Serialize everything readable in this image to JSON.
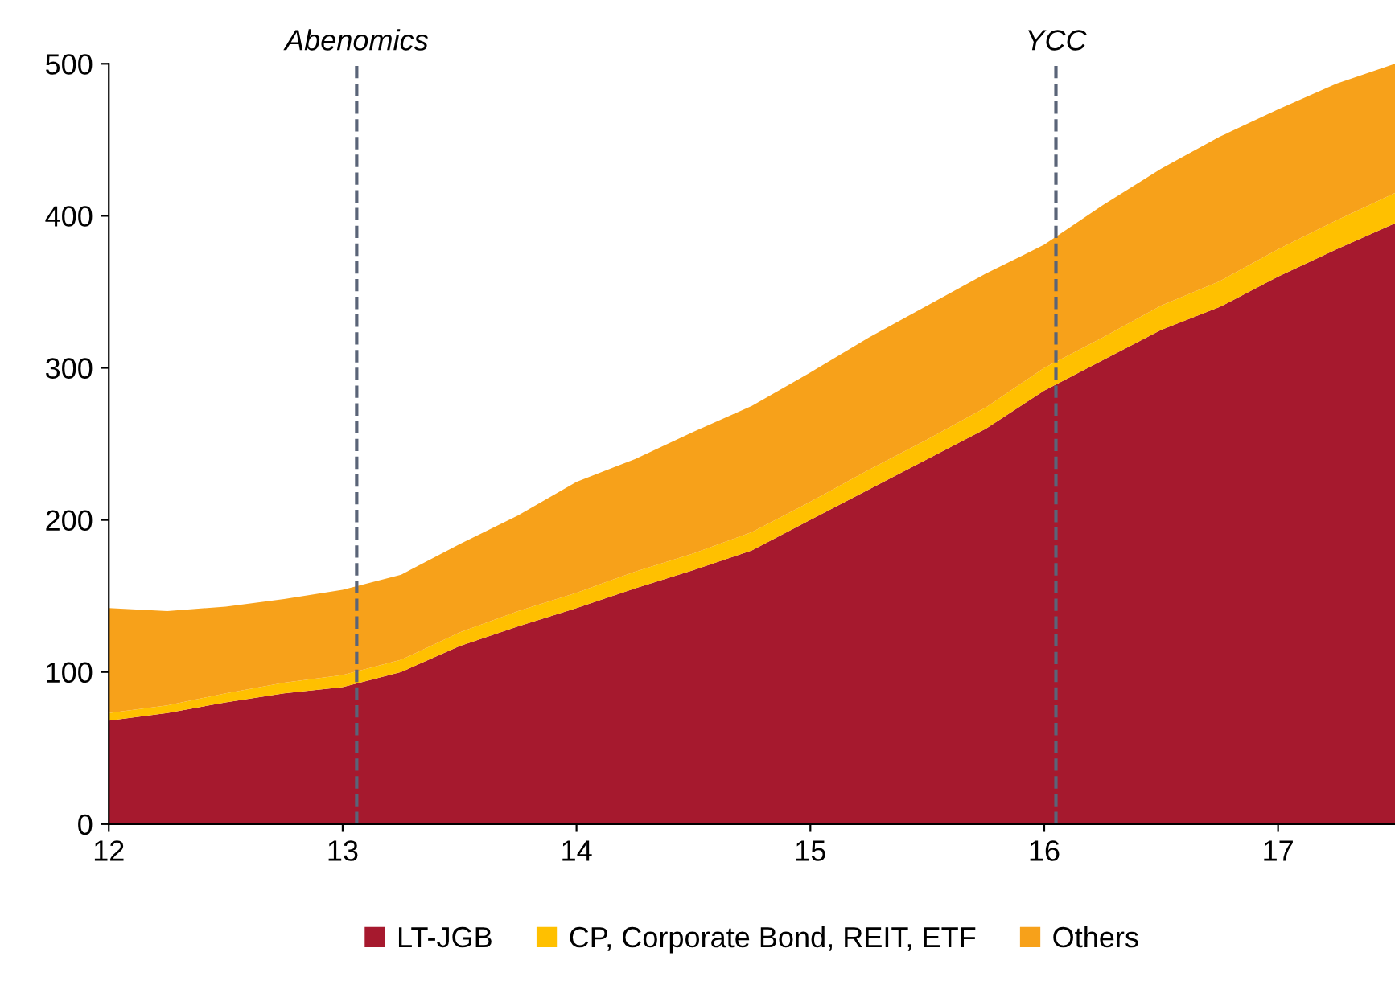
{
  "chart_data": {
    "type": "area",
    "stacked": true,
    "x": [
      12.0,
      12.25,
      12.5,
      12.75,
      13.0,
      13.25,
      13.5,
      13.75,
      14.0,
      14.25,
      14.5,
      14.75,
      15.0,
      15.25,
      15.5,
      15.75,
      16.0,
      16.25,
      16.5,
      16.75,
      17.0,
      17.25,
      17.5
    ],
    "series": [
      {
        "name": "LT-JGB",
        "color": "#a6192e",
        "values": [
          68,
          73,
          80,
          86,
          90,
          100,
          117,
          130,
          142,
          155,
          167,
          180,
          200,
          220,
          240,
          260,
          285,
          305,
          325,
          340,
          360,
          378,
          395
        ]
      },
      {
        "name": "CP, Corporate Bond, REIT, ETF",
        "color": "#ffc000",
        "values": [
          5,
          5,
          6,
          7,
          8,
          8,
          9,
          10,
          10,
          11,
          11,
          12,
          12,
          13,
          13,
          14,
          15,
          15,
          16,
          17,
          18,
          19,
          20
        ]
      },
      {
        "name": "Others",
        "color": "#f7a11a",
        "values": [
          69,
          62,
          57,
          55,
          56,
          56,
          58,
          63,
          73,
          74,
          80,
          83,
          85,
          87,
          88,
          88,
          81,
          87,
          90,
          95,
          92,
          90,
          85
        ]
      }
    ],
    "xlim": [
      12,
      17.5
    ],
    "xticks": [
      12,
      13,
      14,
      15,
      16,
      17
    ],
    "ylim": [
      0,
      500
    ],
    "yticks": [
      0,
      100,
      200,
      300,
      400,
      500
    ],
    "ref_lines": [
      {
        "axis": "x",
        "value": 13.06,
        "label": "Abenomics",
        "color": "#5a6478",
        "line_style": "dashed"
      },
      {
        "axis": "x",
        "value": 16.05,
        "label": "YCC",
        "color": "#5a6478",
        "line_style": "dashed"
      }
    ],
    "grid": false,
    "legend": "bottom"
  }
}
